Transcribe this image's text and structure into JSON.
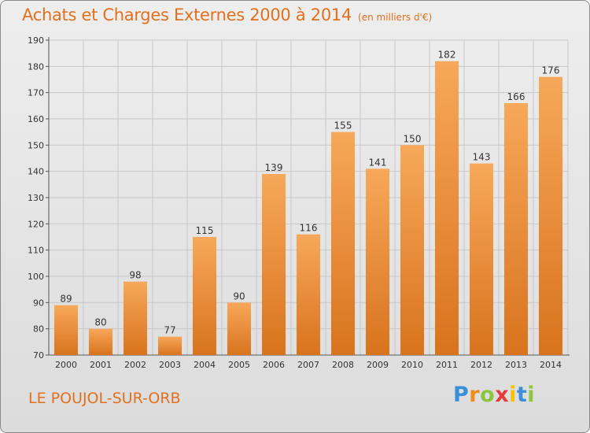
{
  "header": {
    "title": "Achats et Charges Externes 2000 à 2014",
    "unit": "(en milliers d'€)"
  },
  "footer": {
    "place": "LE POUJOL-SUR-ORB",
    "logo_letters": [
      "P",
      "r",
      "o",
      "x",
      "i",
      "t",
      "i"
    ],
    "logo_colors": [
      "#3a8fd6",
      "#f28a1e",
      "#8cc63f",
      "#e83a3a",
      "#f5c400",
      "#3a8fd6",
      "#8cc63f"
    ]
  },
  "colors": {
    "accent": "#e2701f",
    "bar_top": "#f7a85a",
    "bar_bottom": "#d9731d",
    "grid": "#c8c8c8"
  },
  "chart_data": {
    "type": "bar",
    "title": "Achats et Charges Externes 2000 à 2014",
    "categories": [
      "2000",
      "2001",
      "2002",
      "2003",
      "2004",
      "2005",
      "2006",
      "2007",
      "2008",
      "2009",
      "2010",
      "2011",
      "2012",
      "2013",
      "2014"
    ],
    "values": [
      89,
      80,
      98,
      77,
      115,
      90,
      139,
      116,
      155,
      141,
      150,
      182,
      143,
      166,
      176
    ],
    "ylim": [
      70,
      190
    ],
    "yticks": [
      70,
      80,
      90,
      100,
      110,
      120,
      130,
      140,
      150,
      160,
      170,
      180,
      190
    ],
    "grid": true,
    "data_labels": true
  }
}
